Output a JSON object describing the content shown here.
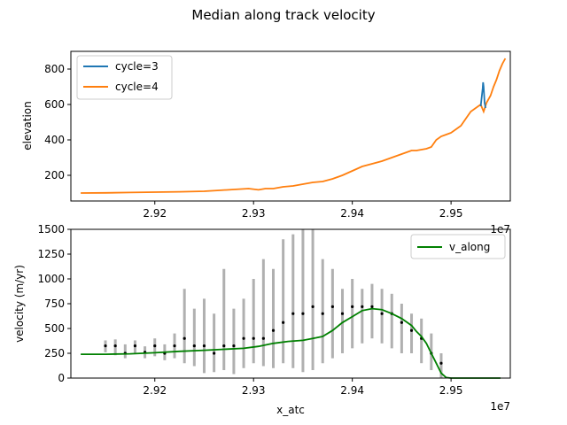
{
  "figure": {
    "suptitle": "Median along track velocity"
  },
  "chart_data": [
    {
      "type": "line",
      "title": "",
      "xlabel": "",
      "ylabel": "elevation",
      "x_offset_label": "1e7",
      "xlim": [
        29115000,
        29560000
      ],
      "ylim": [
        55,
        900
      ],
      "xticks": [
        29200000,
        29300000,
        29400000,
        29500000
      ],
      "xtick_labels": [
        "2.92",
        "2.93",
        "2.94",
        "2.95"
      ],
      "yticks": [
        200,
        400,
        600,
        800
      ],
      "ytick_labels": [
        "200",
        "400",
        "600",
        "800"
      ],
      "grid": false,
      "legend": "upper-left",
      "series": [
        {
          "name": "cycle=3",
          "color": "#1f77b4",
          "x": [
            29530000,
            29531000,
            29532000,
            29532500,
            29533000,
            29533500,
            29534000,
            29535000
          ],
          "y": [
            590,
            640,
            690,
            725,
            700,
            650,
            610,
            580
          ]
        },
        {
          "name": "cycle=4",
          "color": "#ff7f0e",
          "x": [
            29125000,
            29150000,
            29175000,
            29200000,
            29225000,
            29250000,
            29265000,
            29280000,
            29295000,
            29305000,
            29312000,
            29320000,
            29330000,
            29340000,
            29350000,
            29360000,
            29370000,
            29380000,
            29390000,
            29400000,
            29410000,
            29420000,
            29430000,
            29440000,
            29450000,
            29455000,
            29460000,
            29465000,
            29470000,
            29475000,
            29480000,
            29485000,
            29490000,
            29495000,
            29500000,
            29505000,
            29510000,
            29515000,
            29520000,
            29525000,
            29530000,
            29533000,
            29536000,
            29540000,
            29543000,
            29546000,
            29549000,
            29552000,
            29555000
          ],
          "y": [
            100,
            101,
            103,
            105,
            107,
            110,
            115,
            120,
            125,
            118,
            125,
            125,
            135,
            140,
            150,
            160,
            165,
            180,
            200,
            225,
            250,
            265,
            280,
            300,
            320,
            330,
            340,
            340,
            345,
            350,
            360,
            400,
            420,
            430,
            440,
            460,
            480,
            520,
            560,
            580,
            600,
            560,
            610,
            650,
            700,
            740,
            790,
            830,
            860
          ]
        }
      ]
    },
    {
      "type": "scatter",
      "title": "",
      "xlabel": "x_atc",
      "ylabel": "velocity (m/yr)",
      "x_offset_label": "1e7",
      "xlim": [
        29115000,
        29560000
      ],
      "ylim": [
        0,
        1500
      ],
      "xticks": [
        29200000,
        29300000,
        29400000,
        29500000
      ],
      "xtick_labels": [
        "2.92",
        "2.93",
        "2.94",
        "2.95"
      ],
      "yticks": [
        0,
        250,
        500,
        750,
        1000,
        1250,
        1500
      ],
      "ytick_labels": [
        "0",
        "250",
        "500",
        "750",
        "1000",
        "1250",
        "1500"
      ],
      "grid": false,
      "legend": "upper-right",
      "errorbar_color": "#b0b0b0",
      "point_color": "#000000",
      "median_series": {
        "name": "v_along",
        "color": "#008000",
        "x": [
          29125000,
          29150000,
          29175000,
          29200000,
          29225000,
          29250000,
          29270000,
          29290000,
          29305000,
          29320000,
          29335000,
          29350000,
          29360000,
          29370000,
          29380000,
          29390000,
          29400000,
          29410000,
          29420000,
          29430000,
          29440000,
          29450000,
          29460000,
          29465000,
          29470000,
          29475000,
          29480000,
          29485000,
          29490000,
          29495000,
          29500000,
          29510000,
          29530000,
          29550000
        ],
        "y": [
          240,
          240,
          245,
          255,
          270,
          280,
          290,
          300,
          320,
          350,
          370,
          380,
          400,
          420,
          480,
          560,
          620,
          680,
          700,
          690,
          650,
          600,
          530,
          470,
          420,
          350,
          250,
          150,
          50,
          5,
          0,
          0,
          0,
          0
        ]
      },
      "measurements": [
        {
          "x": 29150000,
          "y": 325,
          "lo": 260,
          "hi": 380
        },
        {
          "x": 29160000,
          "y": 325,
          "lo": 230,
          "hi": 390
        },
        {
          "x": 29170000,
          "y": 250,
          "lo": 200,
          "hi": 340
        },
        {
          "x": 29180000,
          "y": 325,
          "lo": 250,
          "hi": 380
        },
        {
          "x": 29190000,
          "y": 260,
          "lo": 200,
          "hi": 320
        },
        {
          "x": 29200000,
          "y": 325,
          "lo": 220,
          "hi": 400
        },
        {
          "x": 29210000,
          "y": 250,
          "lo": 180,
          "hi": 340
        },
        {
          "x": 29220000,
          "y": 325,
          "lo": 200,
          "hi": 450
        },
        {
          "x": 29230000,
          "y": 400,
          "lo": 150,
          "hi": 900
        },
        {
          "x": 29240000,
          "y": 325,
          "lo": 120,
          "hi": 700
        },
        {
          "x": 29250000,
          "y": 325,
          "lo": 50,
          "hi": 800
        },
        {
          "x": 29260000,
          "y": 250,
          "lo": 60,
          "hi": 650
        },
        {
          "x": 29270000,
          "y": 325,
          "lo": 80,
          "hi": 1100
        },
        {
          "x": 29280000,
          "y": 325,
          "lo": 40,
          "hi": 700
        },
        {
          "x": 29290000,
          "y": 400,
          "lo": 100,
          "hi": 800
        },
        {
          "x": 29300000,
          "y": 400,
          "lo": 150,
          "hi": 1000
        },
        {
          "x": 29310000,
          "y": 400,
          "lo": 120,
          "hi": 1200
        },
        {
          "x": 29320000,
          "y": 480,
          "lo": 100,
          "hi": 1100
        },
        {
          "x": 29330000,
          "y": 560,
          "lo": 150,
          "hi": 1400
        },
        {
          "x": 29340000,
          "y": 650,
          "lo": 100,
          "hi": 1450
        },
        {
          "x": 29350000,
          "y": 650,
          "lo": 60,
          "hi": 1500
        },
        {
          "x": 29360000,
          "y": 720,
          "lo": 80,
          "hi": 1500
        },
        {
          "x": 29370000,
          "y": 650,
          "lo": 150,
          "hi": 1200
        },
        {
          "x": 29380000,
          "y": 720,
          "lo": 200,
          "hi": 1100
        },
        {
          "x": 29390000,
          "y": 650,
          "lo": 250,
          "hi": 900
        },
        {
          "x": 29400000,
          "y": 720,
          "lo": 300,
          "hi": 1000
        },
        {
          "x": 29410000,
          "y": 720,
          "lo": 350,
          "hi": 900
        },
        {
          "x": 29420000,
          "y": 720,
          "lo": 400,
          "hi": 950
        },
        {
          "x": 29430000,
          "y": 650,
          "lo": 350,
          "hi": 900
        },
        {
          "x": 29440000,
          "y": 650,
          "lo": 300,
          "hi": 850
        },
        {
          "x": 29450000,
          "y": 560,
          "lo": 250,
          "hi": 750
        },
        {
          "x": 29460000,
          "y": 480,
          "lo": 250,
          "hi": 650
        },
        {
          "x": 29470000,
          "y": 400,
          "lo": 150,
          "hi": 600
        },
        {
          "x": 29480000,
          "y": 250,
          "lo": 80,
          "hi": 450
        },
        {
          "x": 29490000,
          "y": 150,
          "lo": 0,
          "hi": 250
        }
      ]
    }
  ]
}
